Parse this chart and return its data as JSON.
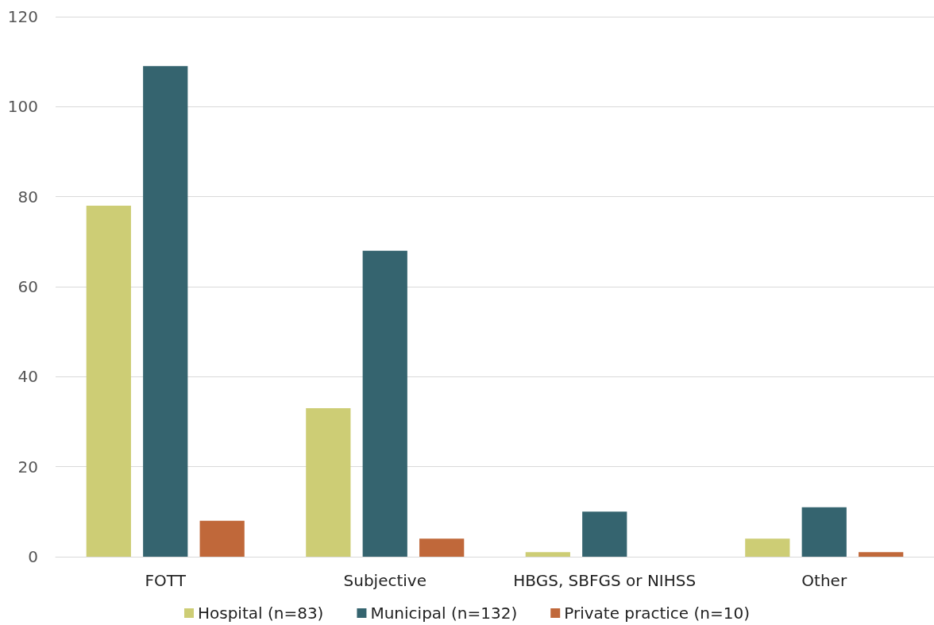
{
  "chart_data": {
    "type": "bar",
    "categories": [
      "FOTT",
      "Subjective",
      "HBGS, SBFGS or NIHSS",
      "Other"
    ],
    "series": [
      {
        "name": "Hospital (n=83)",
        "color": "#cdcd75",
        "values": [
          78,
          33,
          1,
          4
        ]
      },
      {
        "name": "Municipal (n=132)",
        "color": "#35646f",
        "values": [
          109,
          68,
          10,
          11
        ]
      },
      {
        "name": "Private practice (n=10)",
        "color": "#c0683a",
        "values": [
          8,
          4,
          0,
          1
        ]
      }
    ],
    "ylim": [
      0,
      120
    ],
    "yticks": [
      0,
      20,
      40,
      60,
      80,
      100,
      120
    ],
    "grid": "y",
    "legend": "bottom"
  }
}
